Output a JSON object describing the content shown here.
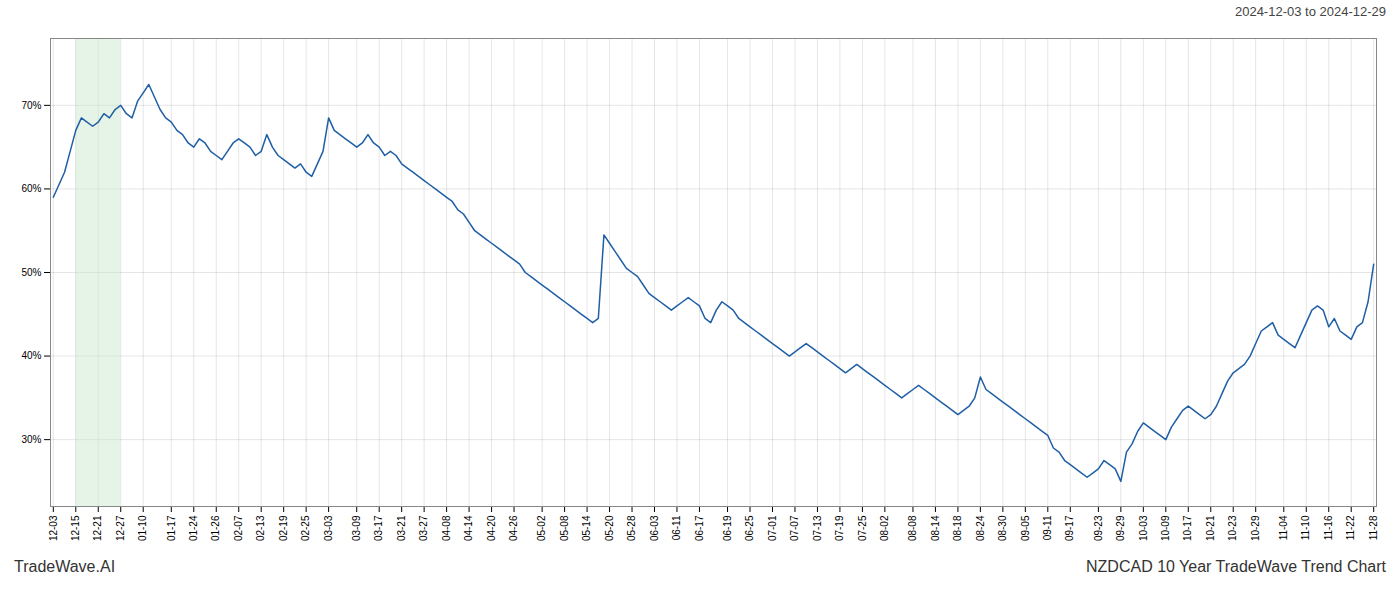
{
  "chart_data": {
    "type": "line",
    "title": "NZDCAD 10 Year TradeWave Trend Chart",
    "subtitle": "2024-12-03 to 2024-12-29",
    "annotation": "TradeWave.AI",
    "color": "#1f5fa6",
    "grid": true,
    "ylim": [
      22,
      78
    ],
    "yticks": [
      {
        "value": 30,
        "label": "30%"
      },
      {
        "value": 40,
        "label": "40%"
      },
      {
        "value": 50,
        "label": "50%"
      },
      {
        "value": 60,
        "label": "60%"
      },
      {
        "value": 70,
        "label": "70%"
      }
    ],
    "shaded_range": {
      "x": [
        "12-15",
        "12-27"
      ],
      "color": "#c8e6c9"
    },
    "categories": [
      "12-03",
      null,
      null,
      null,
      "12-15",
      null,
      null,
      null,
      "12-21",
      null,
      null,
      null,
      "12-27",
      null,
      null,
      null,
      "01-10",
      null,
      null,
      null,
      null,
      "01-17",
      null,
      null,
      null,
      "01-24",
      null,
      null,
      null,
      "01-26",
      null,
      null,
      null,
      "02-07",
      null,
      null,
      null,
      "02-13",
      null,
      null,
      null,
      "02-19",
      null,
      null,
      null,
      "02-25",
      null,
      null,
      null,
      "03-03",
      null,
      null,
      null,
      null,
      "03-09",
      null,
      null,
      null,
      "03-17",
      null,
      null,
      null,
      "03-21",
      null,
      null,
      null,
      "03-27",
      null,
      null,
      null,
      "04-08",
      null,
      null,
      null,
      "04-14",
      null,
      null,
      null,
      "04-20",
      null,
      null,
      null,
      "04-26",
      null,
      null,
      null,
      null,
      "05-02",
      null,
      null,
      null,
      "05-08",
      null,
      null,
      null,
      "05-14",
      null,
      null,
      null,
      "05-20",
      null,
      null,
      null,
      "05-28",
      null,
      null,
      null,
      "06-03",
      null,
      null,
      null,
      "06-11",
      null,
      null,
      null,
      "06-17",
      null,
      null,
      null,
      null,
      "06-19",
      null,
      null,
      null,
      "06-25",
      null,
      null,
      null,
      "07-01",
      null,
      null,
      null,
      "07-07",
      null,
      null,
      null,
      "07-13",
      null,
      null,
      null,
      "07-19",
      null,
      null,
      null,
      "07-25",
      null,
      null,
      null,
      "08-02",
      null,
      null,
      null,
      null,
      "08-08",
      null,
      null,
      null,
      "08-14",
      null,
      null,
      null,
      "08-18",
      null,
      null,
      null,
      "08-24",
      null,
      null,
      null,
      "08-30",
      null,
      null,
      null,
      "09-05",
      null,
      null,
      null,
      "09-11",
      null,
      null,
      null,
      "09-17",
      null,
      null,
      null,
      null,
      "09-23",
      null,
      null,
      null,
      "09-29",
      null,
      null,
      null,
      "10-03",
      null,
      null,
      null,
      "10-09",
      null,
      null,
      null,
      "10-17",
      null,
      null,
      null,
      "10-21",
      null,
      null,
      null,
      "10-23",
      null,
      null,
      null,
      "10-29",
      null,
      null,
      null,
      null,
      "11-04",
      null,
      null,
      null,
      "11-10",
      null,
      null,
      null,
      "11-16",
      null,
      null,
      null,
      "11-22",
      null,
      null,
      null,
      "11-28"
    ],
    "values": [
      59.0,
      60.5,
      62.0,
      64.5,
      67.0,
      68.5,
      68.0,
      67.5,
      68.0,
      69.0,
      68.5,
      69.5,
      70.0,
      69.0,
      68.5,
      70.5,
      71.5,
      72.5,
      71.0,
      69.5,
      68.5,
      68.0,
      67.0,
      66.5,
      65.5,
      65.0,
      66.0,
      65.5,
      64.5,
      64.0,
      63.5,
      64.5,
      65.5,
      66.0,
      65.5,
      65.0,
      64.0,
      64.5,
      66.5,
      65.0,
      64.0,
      63.5,
      63.0,
      62.5,
      63.0,
      62.0,
      61.5,
      63.0,
      64.5,
      68.5,
      67.0,
      66.5,
      66.0,
      65.5,
      65.0,
      65.5,
      66.5,
      65.5,
      65.0,
      64.0,
      64.5,
      64.0,
      63.0,
      62.5,
      62.0,
      61.5,
      61.0,
      60.5,
      60.0,
      59.5,
      59.0,
      58.5,
      57.5,
      57.0,
      56.0,
      55.0,
      54.5,
      54.0,
      53.5,
      53.0,
      52.5,
      52.0,
      51.5,
      51.0,
      50.0,
      49.5,
      49.0,
      48.5,
      48.0,
      47.5,
      47.0,
      46.5,
      46.0,
      45.5,
      45.0,
      44.5,
      44.0,
      44.5,
      54.5,
      53.5,
      52.5,
      51.5,
      50.5,
      50.0,
      49.5,
      48.5,
      47.5,
      47.0,
      46.5,
      46.0,
      45.5,
      46.0,
      46.5,
      47.0,
      46.5,
      46.0,
      44.5,
      44.0,
      45.5,
      46.5,
      46.0,
      45.5,
      44.5,
      44.0,
      43.5,
      43.0,
      42.5,
      42.0,
      41.5,
      41.0,
      40.5,
      40.0,
      40.5,
      41.0,
      41.5,
      41.0,
      40.5,
      40.0,
      39.5,
      39.0,
      38.5,
      38.0,
      38.5,
      39.0,
      38.5,
      38.0,
      37.5,
      37.0,
      36.5,
      36.0,
      35.5,
      35.0,
      35.5,
      36.0,
      36.5,
      36.0,
      35.5,
      35.0,
      34.5,
      34.0,
      33.5,
      33.0,
      33.5,
      34.0,
      35.0,
      37.5,
      36.0,
      35.5,
      35.0,
      34.5,
      34.0,
      33.5,
      33.0,
      32.5,
      32.0,
      31.5,
      31.0,
      30.5,
      29.0,
      28.5,
      27.5,
      27.0,
      26.5,
      26.0,
      25.5,
      26.0,
      26.5,
      27.5,
      27.0,
      26.5,
      25.0,
      28.5,
      29.5,
      31.0,
      32.0,
      31.5,
      31.0,
      30.5,
      30.0,
      31.5,
      32.5,
      33.5,
      34.0,
      33.5,
      33.0,
      32.5,
      33.0,
      34.0,
      35.5,
      37.0,
      38.0,
      38.5,
      39.0,
      40.0,
      41.5,
      43.0,
      43.5,
      44.0,
      42.5,
      42.0,
      41.5,
      41.0,
      42.5,
      44.0,
      45.5,
      46.0,
      45.5,
      43.5,
      44.5,
      43.0,
      42.5,
      42.0,
      43.5,
      44.0,
      46.5,
      51.0
    ]
  }
}
